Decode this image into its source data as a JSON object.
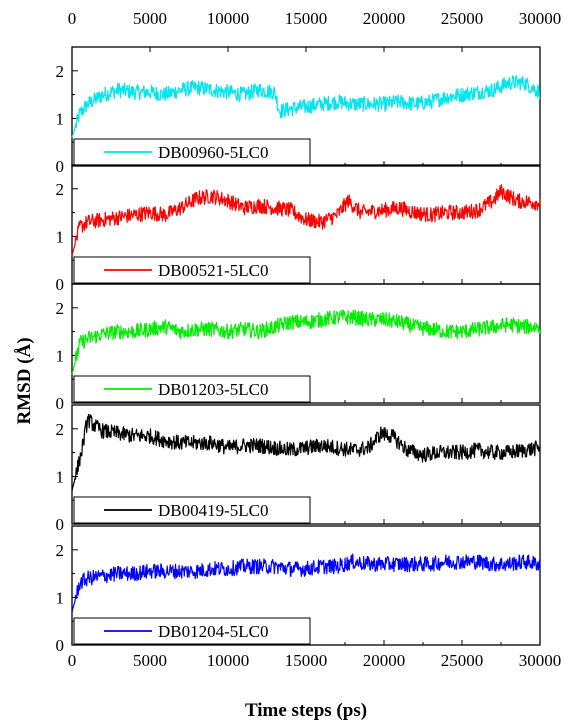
{
  "chart_data": {
    "type": "line",
    "ylabel": "RMSD (Å)",
    "xlabel": "Time steps (ps)",
    "xlim": [
      0,
      30000
    ],
    "ylim": [
      0,
      2.5
    ],
    "x_ticks": [
      "0",
      "5000",
      "10000",
      "15000",
      "20000",
      "25000",
      "30000"
    ],
    "top_x_ticks": [
      "0",
      "5000",
      "10000",
      "15000",
      "20000",
      "25000",
      "30000"
    ],
    "y_ticks": [
      "0",
      "1",
      "2"
    ],
    "legend_placement": "bottom-left",
    "grid": false,
    "series": [
      {
        "name": "DB00960-5LC0",
        "color": "#00e5ee",
        "x": [
          0,
          500,
          1000,
          2000,
          3000,
          4000,
          5000,
          6000,
          7000,
          8000,
          9000,
          10000,
          11000,
          12000,
          13000,
          13300,
          14000,
          15000,
          16000,
          17000,
          18000,
          19000,
          20000,
          21000,
          22000,
          23000,
          24000,
          25000,
          26000,
          27000,
          28000,
          29000,
          30000
        ],
        "values": [
          0.6,
          1.1,
          1.3,
          1.5,
          1.6,
          1.55,
          1.55,
          1.5,
          1.6,
          1.65,
          1.6,
          1.55,
          1.5,
          1.6,
          1.55,
          1.15,
          1.2,
          1.25,
          1.3,
          1.35,
          1.3,
          1.3,
          1.3,
          1.35,
          1.3,
          1.35,
          1.45,
          1.5,
          1.55,
          1.6,
          1.75,
          1.75,
          1.55
        ]
      },
      {
        "name": "DB00521-5LC0",
        "color": "#ff0000",
        "x": [
          0,
          500,
          1000,
          2000,
          3000,
          4000,
          5000,
          6000,
          7000,
          8000,
          9000,
          10000,
          11000,
          12000,
          13000,
          14000,
          15000,
          16000,
          17000,
          17700,
          18500,
          20000,
          21000,
          22000,
          23000,
          24000,
          25000,
          26000,
          27000,
          27500,
          28500,
          30000
        ],
        "values": [
          0.6,
          1.2,
          1.3,
          1.35,
          1.4,
          1.45,
          1.5,
          1.45,
          1.6,
          1.8,
          1.85,
          1.75,
          1.6,
          1.65,
          1.6,
          1.55,
          1.35,
          1.3,
          1.45,
          1.75,
          1.5,
          1.55,
          1.6,
          1.5,
          1.45,
          1.5,
          1.5,
          1.55,
          1.75,
          1.95,
          1.75,
          1.7
        ]
      },
      {
        "name": "DB01203-5LC0",
        "color": "#00ee00",
        "x": [
          0,
          500,
          1000,
          2000,
          3000,
          4000,
          5000,
          6000,
          7000,
          8000,
          9000,
          10000,
          11000,
          12000,
          13000,
          14000,
          15000,
          16000,
          17000,
          18000,
          19000,
          20000,
          21000,
          22000,
          23000,
          24000,
          25000,
          26000,
          27000,
          28000,
          29000,
          30000
        ],
        "values": [
          0.6,
          1.25,
          1.35,
          1.45,
          1.5,
          1.5,
          1.55,
          1.6,
          1.5,
          1.55,
          1.55,
          1.5,
          1.55,
          1.5,
          1.6,
          1.7,
          1.7,
          1.75,
          1.8,
          1.8,
          1.75,
          1.75,
          1.7,
          1.6,
          1.55,
          1.5,
          1.5,
          1.55,
          1.6,
          1.65,
          1.6,
          1.6
        ]
      },
      {
        "name": "DB00419-5LC0",
        "color": "#000000",
        "x": [
          0,
          300,
          600,
          1000,
          1500,
          2000,
          3000,
          4000,
          5000,
          6000,
          7000,
          8000,
          9000,
          10000,
          11000,
          12000,
          13000,
          14000,
          15000,
          16000,
          17000,
          18000,
          19000,
          19800,
          20500,
          21500,
          22500,
          23500,
          25000,
          26000,
          27000,
          28000,
          29000,
          30000
        ],
        "values": [
          0.7,
          1.1,
          1.5,
          2.2,
          2.05,
          1.95,
          1.9,
          1.85,
          1.85,
          1.75,
          1.7,
          1.7,
          1.7,
          1.6,
          1.65,
          1.65,
          1.6,
          1.55,
          1.6,
          1.65,
          1.6,
          1.55,
          1.6,
          1.9,
          1.85,
          1.55,
          1.45,
          1.5,
          1.5,
          1.55,
          1.5,
          1.5,
          1.55,
          1.6
        ]
      },
      {
        "name": "DB01204-5LC0",
        "color": "#0000ff",
        "x": [
          0,
          500,
          1000,
          2000,
          3000,
          4000,
          5000,
          6000,
          7000,
          8000,
          9000,
          10000,
          11000,
          12000,
          13000,
          14000,
          15000,
          16000,
          17000,
          18000,
          19000,
          20000,
          21000,
          22000,
          23000,
          24000,
          25000,
          26000,
          27000,
          28000,
          29000,
          30000
        ],
        "values": [
          0.7,
          1.3,
          1.4,
          1.45,
          1.5,
          1.5,
          1.55,
          1.55,
          1.55,
          1.55,
          1.6,
          1.6,
          1.65,
          1.65,
          1.65,
          1.6,
          1.6,
          1.65,
          1.65,
          1.75,
          1.7,
          1.7,
          1.7,
          1.7,
          1.7,
          1.75,
          1.75,
          1.75,
          1.7,
          1.7,
          1.75,
          1.7
        ]
      }
    ]
  }
}
